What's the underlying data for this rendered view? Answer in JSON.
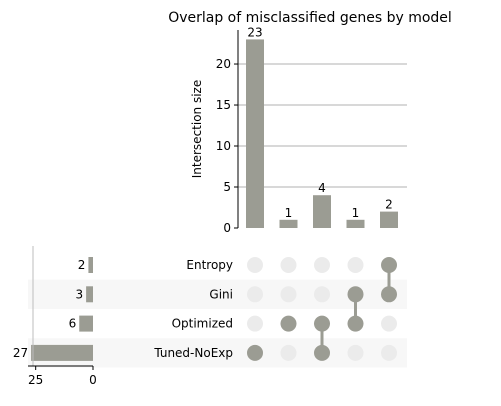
{
  "chart_data": {
    "type": "upset",
    "title": "Overlap of misclassified genes by model",
    "ylabel": "Intersection size",
    "ylim": [
      0,
      24.15
    ],
    "yticks": [
      0,
      5,
      10,
      15,
      20
    ],
    "grid": true,
    "sets": [
      {
        "name": "Entropy",
        "size": 2
      },
      {
        "name": "Gini",
        "size": 3
      },
      {
        "name": "Optimized",
        "size": 6
      },
      {
        "name": "Tuned-NoExp",
        "size": 27
      }
    ],
    "set_size_ticks": [
      25,
      0
    ],
    "set_size_max": 28.35,
    "intersections": [
      {
        "members": [
          "Tuned-NoExp"
        ],
        "value": 23
      },
      {
        "members": [
          "Optimized"
        ],
        "value": 1
      },
      {
        "members": [
          "Optimized",
          "Tuned-NoExp"
        ],
        "value": 4
      },
      {
        "members": [
          "Gini",
          "Optimized"
        ],
        "value": 1
      },
      {
        "members": [
          "Entropy",
          "Gini"
        ],
        "value": 2
      }
    ],
    "colors": {
      "bar": "#9b9c93",
      "dot_active": "#9b9c93",
      "dot_inactive": "#ebebeb",
      "grid": "#b0b0b0",
      "shade": "#f7f7f7"
    }
  }
}
